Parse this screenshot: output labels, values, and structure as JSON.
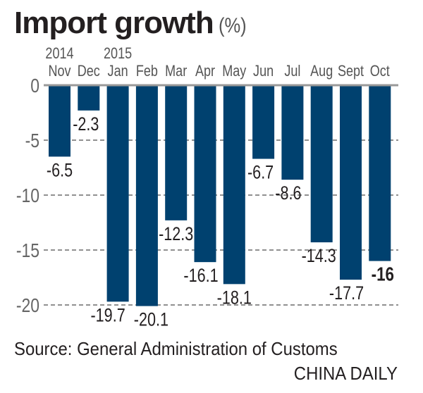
{
  "chart_data": {
    "type": "bar",
    "title": "Import growth",
    "unit": "(%)",
    "categories": [
      "Nov",
      "Dec",
      "Jan",
      "Feb",
      "Mar",
      "Apr",
      "May",
      "Jun",
      "Jul",
      "Aug",
      "Sept",
      "Oct"
    ],
    "year_labels": {
      "Nov": "2014",
      "Jan": "2015"
    },
    "values": [
      -6.5,
      -2.3,
      -19.7,
      -20.1,
      -12.3,
      -16.1,
      -18.1,
      -6.7,
      -8.6,
      -14.3,
      -17.7,
      -16
    ],
    "value_labels": [
      "-6.5",
      "-2.3",
      "-19.7",
      "-20.1",
      "-12.3",
      "-16.1",
      "-18.1",
      "-6.7",
      "-8.6",
      "-14.3",
      "-17.7",
      "-16"
    ],
    "highlight_index": 11,
    "yticks": [
      0,
      -5,
      -10,
      -15,
      -20
    ],
    "ylim": [
      -20,
      0
    ],
    "grid": "dashed horizontal",
    "bar_color": "#00416f",
    "source": "Source: General Administration of Customs",
    "brand": "CHINA DAILY"
  }
}
